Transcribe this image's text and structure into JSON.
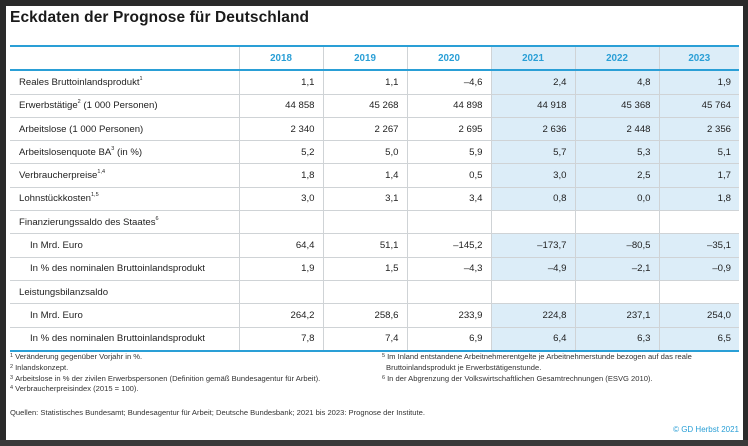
{
  "title": "Eckdaten der Prognose für Deutschland",
  "years": [
    "2018",
    "2019",
    "2020",
    "2021",
    "2022",
    "2023"
  ],
  "rows": [
    {
      "label": "Reales Bruttoinlandsprodukt",
      "sup": "1",
      "indent": false,
      "values": [
        "1,1",
        "1,1",
        "–4,6",
        "2,4",
        "4,8",
        "1,9"
      ]
    },
    {
      "label": "Erwerbstätige",
      "sup": "2",
      "label_suffix": " (1 000 Personen)",
      "indent": false,
      "values": [
        "44 858",
        "45 268",
        "44 898",
        "44 918",
        "45 368",
        "45 764"
      ]
    },
    {
      "label": "Arbeitslose (1 000 Personen)",
      "sup": "",
      "indent": false,
      "values": [
        "2 340",
        "2 267",
        "2 695",
        "2 636",
        "2 448",
        "2 356"
      ]
    },
    {
      "label": "Arbeitslosenquote BA",
      "sup": "3",
      "label_suffix": " (in %)",
      "indent": false,
      "values": [
        "5,2",
        "5,0",
        "5,9",
        "5,7",
        "5,3",
        "5,1"
      ]
    },
    {
      "label": "Verbraucherpreise",
      "sup": "1,4",
      "indent": false,
      "values": [
        "1,8",
        "1,4",
        "0,5",
        "3,0",
        "2,5",
        "1,7"
      ]
    },
    {
      "label": "Lohnstückkosten",
      "sup": "1,5",
      "indent": false,
      "values": [
        "3,0",
        "3,1",
        "3,4",
        "0,8",
        "0,0",
        "1,8"
      ]
    },
    {
      "label": "Finanzierungssaldo des Staates",
      "sup": "6",
      "indent": false,
      "values": [
        "",
        "",
        "",
        "",
        "",
        ""
      ]
    },
    {
      "label": "In Mrd. Euro",
      "sup": "",
      "indent": true,
      "values": [
        "64,4",
        "51,1",
        "–145,2",
        "–173,7",
        "–80,5",
        "–35,1"
      ]
    },
    {
      "label": "In % des nominalen Bruttoinlandsprodukt",
      "sup": "",
      "indent": true,
      "values": [
        "1,9",
        "1,5",
        "–4,3",
        "–4,9",
        "–2,1",
        "–0,9"
      ]
    },
    {
      "label": "Leistungsbilanzsaldo",
      "sup": "",
      "indent": false,
      "values": [
        "",
        "",
        "",
        "",
        "",
        ""
      ]
    },
    {
      "label": "In Mrd. Euro",
      "sup": "",
      "indent": true,
      "values": [
        "264,2",
        "258,6",
        "233,9",
        "224,8",
        "237,1",
        "254,0"
      ]
    },
    {
      "label": "In % des nominalen Bruttoinlandsprodukt",
      "sup": "",
      "indent": true,
      "values": [
        "7,8",
        "7,4",
        "6,9",
        "6,4",
        "6,3",
        "6,5"
      ]
    }
  ],
  "footnotes_left": [
    {
      "num": "1",
      "text": "Veränderung gegenüber Vorjahr in %."
    },
    {
      "num": "2",
      "text": "Inlandskonzept."
    },
    {
      "num": "3",
      "text": "Arbeitslose in % der zivilen Erwerbspersonen (Definition gemäß Bundesagentur für Arbeit)."
    },
    {
      "num": "4",
      "text": "Verbraucherpreisindex (2015 = 100)."
    }
  ],
  "footnotes_right": [
    {
      "num": "5",
      "text": "Im Inland entstandene Arbeitnehmerentgelte je Arbeitnehmerstunde bezogen auf das reale"
    },
    {
      "num": "",
      "text": "Bruttoinlandsprodukt je Erwerbstätigenstunde."
    },
    {
      "num": "6",
      "text": "In der Abgrenzung der Volkswirtschaftlichen Gesamtrechnungen (ESVG 2010)."
    }
  ],
  "sources": "Quellen: Statistisches Bundesamt; Bundesagentur für Arbeit; Deutsche Bundesbank; 2021 bis 2023: Prognose der Institute.",
  "copyright": "© GD Herbst 2021",
  "colors": {
    "accent": "#2a9fd6",
    "forecast_bg": "#dcedf8"
  }
}
